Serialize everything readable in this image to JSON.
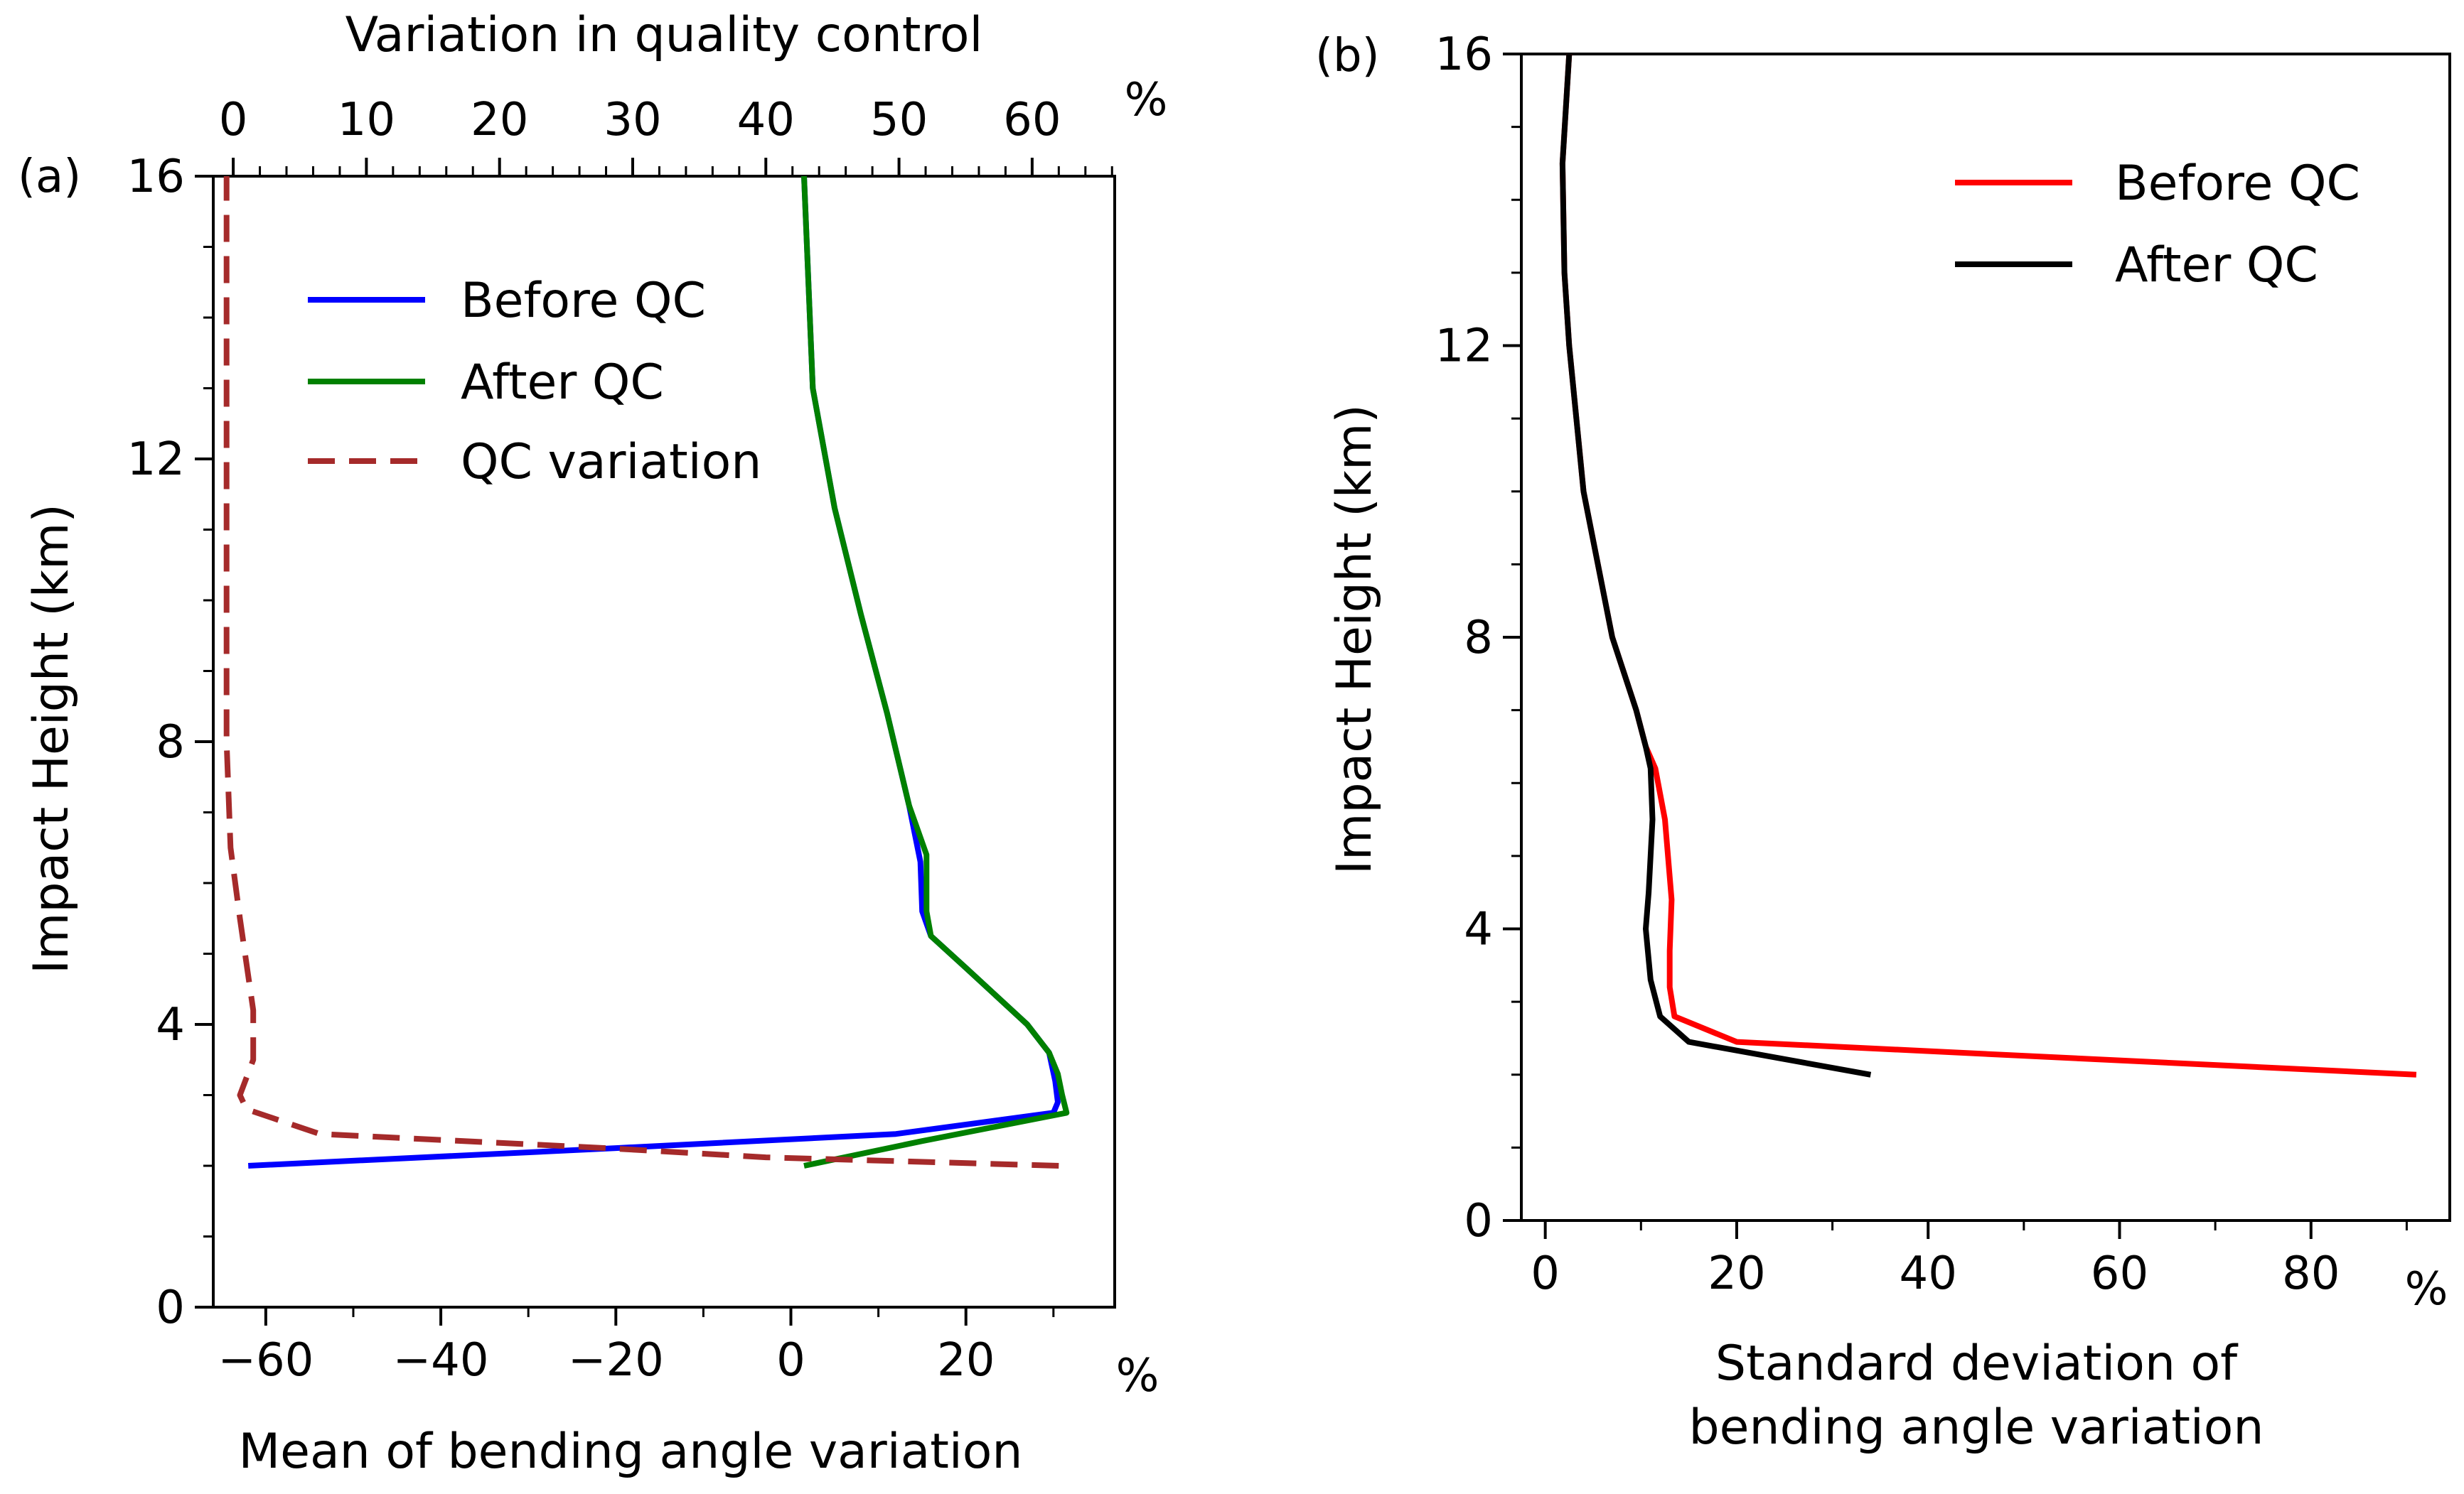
{
  "chart_data": [
    {
      "panel_label": "(a)",
      "type": "line",
      "xlabel": "Mean of bending angle variation",
      "x_unit": "%",
      "x_top_label": "Variation in quality control",
      "x_top_unit": "%",
      "ylabel": "Impact Height (km)",
      "xlim": [
        -66,
        37
      ],
      "x_top_lim": [
        -1.5,
        66.2
      ],
      "ylim": [
        0,
        16
      ],
      "xticks": [
        -60,
        -40,
        -20,
        0,
        20
      ],
      "xtick_labels": [
        "−60",
        "−40",
        "−20",
        "0",
        "20"
      ],
      "x_top_ticks": [
        0,
        10,
        20,
        30,
        40,
        50,
        60
      ],
      "x_top_tick_labels": [
        "0",
        "10",
        "20",
        "30",
        "40",
        "50",
        "60"
      ],
      "yticks": [
        0,
        4,
        8,
        12,
        16
      ],
      "ytick_labels": [
        "0",
        "4",
        "8",
        "12",
        "16"
      ],
      "grid": false,
      "legend_position": "upper-left",
      "series": [
        {
          "name": "Before QC",
          "color": "#0000ff",
          "style": "solid",
          "axis": "bottom",
          "x": [
            -62,
            -20,
            12,
            30,
            30.5,
            30.2,
            29.5,
            27,
            20,
            16,
            15,
            14.8,
            13.5,
            11,
            8,
            5,
            2.5,
            1.5
          ],
          "y": [
            2.0,
            2.25,
            2.45,
            2.75,
            2.9,
            3.2,
            3.6,
            4.0,
            4.8,
            5.25,
            5.6,
            6.3,
            7.1,
            8.4,
            9.8,
            11.3,
            13.0,
            16.0
          ]
        },
        {
          "name": "After QC",
          "color": "#008000",
          "style": "solid",
          "axis": "bottom",
          "x": [
            1.5,
            15,
            31.5,
            31,
            30.5,
            29.5,
            27,
            20,
            16,
            15.5,
            15.5,
            13.5,
            11,
            8,
            5,
            2.5,
            1.5
          ],
          "y": [
            2.0,
            2.35,
            2.75,
            3.0,
            3.3,
            3.6,
            4.0,
            4.8,
            5.25,
            5.6,
            6.4,
            7.1,
            8.4,
            9.8,
            11.3,
            13.0,
            16.0
          ]
        },
        {
          "name": "QC variation",
          "color": "#a52a2a",
          "style": "dashed",
          "axis": "top",
          "x": [
            62,
            40,
            28,
            6.5,
            1,
            0.5,
            1.5,
            1.5,
            0.5,
            -0.2,
            -0.5,
            -0.5,
            -0.5
          ],
          "y": [
            2.0,
            2.12,
            2.25,
            2.45,
            2.8,
            3.0,
            3.5,
            4.2,
            5.5,
            6.5,
            8.0,
            12.0,
            16.0
          ]
        }
      ]
    },
    {
      "panel_label": "(b)",
      "type": "line",
      "xlabel": "Standard deviation of bending angle variation",
      "xlabel_lines": [
        "Standard deviation of",
        "bending angle variation"
      ],
      "x_unit": "%",
      "ylabel": "Impact Height (km)",
      "xlim": [
        -2.5,
        94.5
      ],
      "ylim": [
        0,
        16
      ],
      "xticks": [
        0,
        20,
        40,
        60,
        80
      ],
      "xtick_labels": [
        "0",
        "20",
        "40",
        "60",
        "80"
      ],
      "yticks": [
        0,
        4,
        8,
        12,
        16
      ],
      "ytick_labels": [
        "0",
        "4",
        "8",
        "12",
        "16"
      ],
      "grid": false,
      "legend_position": "upper-right",
      "series": [
        {
          "name": "Before QC",
          "color": "#ff0000",
          "style": "solid",
          "x": [
            91,
            20,
            13.5,
            13,
            13,
            13.2,
            12.5,
            11.5,
            10.5,
            9.5,
            7,
            4,
            2.5,
            2.0,
            1.8,
            2.5
          ],
          "y": [
            2.0,
            2.45,
            2.8,
            3.2,
            3.7,
            4.4,
            5.5,
            6.2,
            6.5,
            7.0,
            8.0,
            10.0,
            12.0,
            13.0,
            14.5,
            16.0
          ]
        },
        {
          "name": "After QC",
          "color": "#000000",
          "style": "solid",
          "x": [
            34,
            15,
            12,
            11,
            10.5,
            10.8,
            11.2,
            11,
            10.5,
            9.5,
            7,
            4,
            2.5,
            2.0,
            1.8,
            2.5
          ],
          "y": [
            2.0,
            2.45,
            2.8,
            3.3,
            4.0,
            4.5,
            5.5,
            6.2,
            6.5,
            7.0,
            8.0,
            10.0,
            12.0,
            13.0,
            14.5,
            16.0
          ]
        }
      ]
    }
  ]
}
